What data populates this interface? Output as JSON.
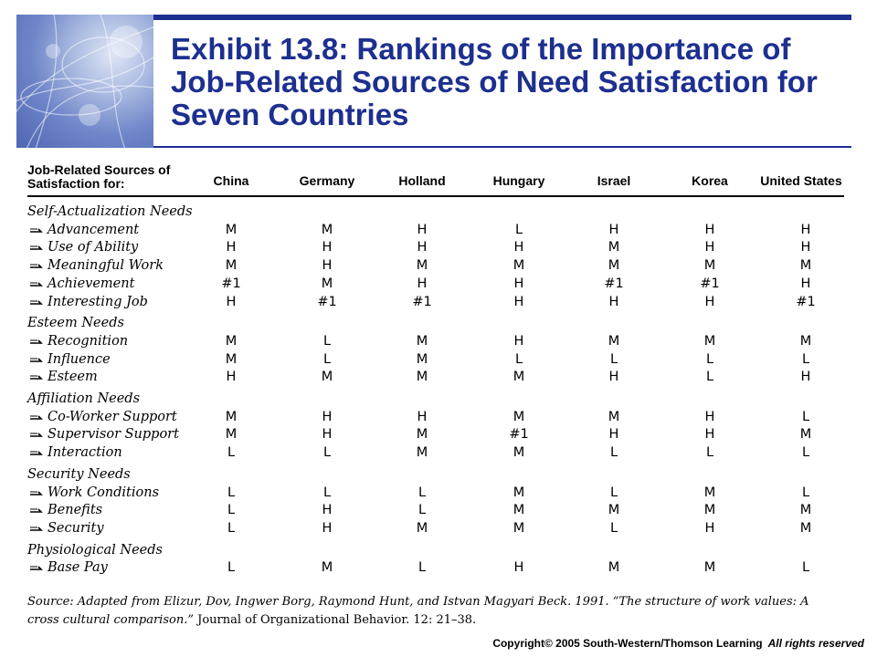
{
  "title": "Exhibit 13.8: Rankings of the Importance of Job-Related Sources of Need Satisfaction for Seven Countries",
  "table": {
    "header_label": "Job-Related Sources of Satisfaction for:",
    "countries": [
      "China",
      "Germany",
      "Holland",
      "Hungary",
      "Israel",
      "Korea",
      "United States"
    ],
    "groups": [
      {
        "name": "Self-Actualization Needs",
        "rows": [
          {
            "label": "Advancement",
            "values": [
              "M",
              "M",
              "H",
              "L",
              "H",
              "H",
              "H"
            ]
          },
          {
            "label": "Use of Ability",
            "values": [
              "H",
              "H",
              "H",
              "H",
              "M",
              "H",
              "H"
            ]
          },
          {
            "label": "Meaningful Work",
            "values": [
              "M",
              "H",
              "M",
              "M",
              "M",
              "M",
              "M"
            ]
          },
          {
            "label": "Achievement",
            "values": [
              "#1",
              "M",
              "H",
              "H",
              "#1",
              "#1",
              "H"
            ]
          },
          {
            "label": "Interesting Job",
            "values": [
              "H",
              "#1",
              "#1",
              "H",
              "H",
              "H",
              "#1"
            ]
          }
        ]
      },
      {
        "name": "Esteem Needs",
        "rows": [
          {
            "label": "Recognition",
            "values": [
              "M",
              "L",
              "M",
              "H",
              "M",
              "M",
              "M"
            ]
          },
          {
            "label": "Influence",
            "values": [
              "M",
              "L",
              "M",
              "L",
              "L",
              "L",
              "L"
            ]
          },
          {
            "label": "Esteem",
            "values": [
              "H",
              "M",
              "M",
              "M",
              "H",
              "L",
              "H"
            ]
          }
        ]
      },
      {
        "name": "Affiliation Needs",
        "rows": [
          {
            "label": "Co-Worker Support",
            "values": [
              "M",
              "H",
              "H",
              "M",
              "M",
              "H",
              "L"
            ]
          },
          {
            "label": "Supervisor Support",
            "values": [
              "M",
              "H",
              "M",
              "#1",
              "H",
              "H",
              "M"
            ]
          },
          {
            "label": "Interaction",
            "values": [
              "L",
              "L",
              "M",
              "M",
              "L",
              "L",
              "L"
            ]
          }
        ]
      },
      {
        "name": "Security Needs",
        "rows": [
          {
            "label": "Work Conditions",
            "values": [
              "L",
              "L",
              "L",
              "M",
              "L",
              "M",
              "L"
            ]
          },
          {
            "label": "Benefits",
            "values": [
              "L",
              "H",
              "L",
              "M",
              "M",
              "M",
              "M"
            ]
          },
          {
            "label": "Security",
            "values": [
              "L",
              "H",
              "M",
              "M",
              "L",
              "H",
              "M"
            ]
          }
        ]
      },
      {
        "name": "Physiological Needs",
        "rows": [
          {
            "label": "Base Pay",
            "values": [
              "L",
              "M",
              "L",
              "H",
              "M",
              "M",
              "L"
            ]
          }
        ]
      }
    ]
  },
  "source": {
    "prefix": "Source: Adapted from Elizur, Dov, Ingwer Borg, Raymond Hunt, and Istvan Magyari Beck. 1991. “The structure of work values: A cross cultural comparison.”",
    "journal": "Journal of Organizational Behavior.",
    "suffix": "12: 21–38."
  },
  "copyright": {
    "text": "Copyright© 2005 South-Western/Thomson Learning",
    "rights": "All rights reserved"
  },
  "colors": {
    "accent": "#1d2f8f",
    "text": "#000000"
  },
  "icons": {
    "row_marker": "arrow-bullet-icon",
    "corner_art": "abstract-globe-image"
  }
}
